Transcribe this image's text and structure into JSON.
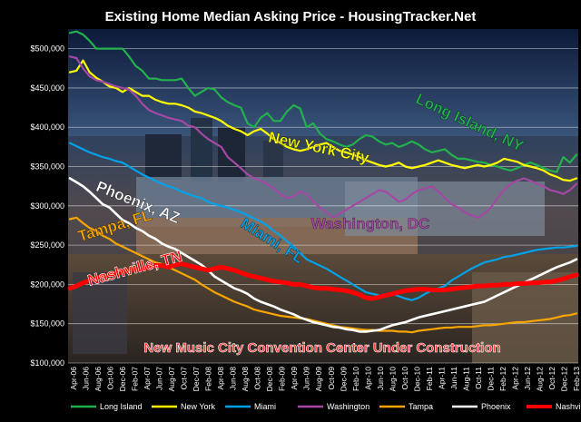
{
  "chart_data": {
    "type": "line",
    "title": "Existing Home Median Asking Price - HousingTracker.Net",
    "subtitle": "",
    "xlabel": "",
    "ylabel": "",
    "ylim": [
      100000,
      525000
    ],
    "yticks": [
      100000,
      150000,
      200000,
      250000,
      300000,
      350000,
      400000,
      450000,
      500000
    ],
    "ytick_labels": [
      "$100,000",
      "$150,000",
      "$200,000",
      "$250,000",
      "$300,000",
      "$350,000",
      "$400,000",
      "$450,000",
      "$500,000"
    ],
    "x_tick_labels": [
      "Apr-06",
      "Jun-06",
      "Aug-06",
      "Oct-06",
      "Dec-06",
      "Feb-07",
      "Apr-07",
      "Jun-07",
      "Aug-07",
      "Oct-07",
      "Dec-07",
      "Feb-08",
      "Apr-08",
      "Jun-08",
      "Aug-08",
      "Oct-08",
      "Dec-08",
      "Feb-09",
      "Apr-09",
      "Jun-09",
      "Aug-09",
      "Oct-09",
      "Dec-09",
      "Feb-10",
      "Apr-10",
      "Jun-10",
      "Aug-10",
      "Oct-10",
      "Dec-10",
      "Feb-11",
      "Apr-11",
      "Jun-11",
      "Aug-11",
      "Oct-11",
      "Dec-11",
      "Feb-12",
      "Apr-12",
      "Jun-12",
      "Aug-12",
      "Oct-12",
      "Dec-12",
      "Feb-13"
    ],
    "grid": true,
    "legend_position": "bottom",
    "annotation": "New Music City Convention Center Under Construction",
    "series": [
      {
        "name": "Long Island",
        "color": "#22b14c",
        "inline_label": "Long Island, NY",
        "stroke": 2.2,
        "values": [
          520000,
          522000,
          518000,
          510000,
          500000,
          500000,
          500000,
          500000,
          500000,
          490000,
          478000,
          472000,
          462000,
          462000,
          460000,
          460000,
          460000,
          462000,
          450000,
          440000,
          445000,
          450000,
          448000,
          438000,
          432000,
          428000,
          425000,
          405000,
          400000,
          412000,
          418000,
          408000,
          408000,
          420000,
          428000,
          424000,
          400000,
          405000,
          392000,
          385000,
          382000,
          378000,
          375000,
          378000,
          385000,
          390000,
          388000,
          382000,
          378000,
          380000,
          375000,
          378000,
          382000,
          378000,
          372000,
          368000,
          370000,
          372000,
          365000,
          360000,
          360000,
          358000,
          356000,
          355000,
          352000,
          350000,
          347000,
          345000,
          348000,
          352000,
          355000,
          352000,
          348000,
          345000,
          343000,
          362000,
          355000,
          365000
        ]
      },
      {
        "name": "New York",
        "color": "#ffff00",
        "inline_label": "New York City",
        "stroke": 2.2,
        "values": [
          470000,
          472000,
          485000,
          470000,
          463000,
          458000,
          452000,
          450000,
          445000,
          450000,
          445000,
          440000,
          440000,
          435000,
          432000,
          430000,
          430000,
          428000,
          425000,
          420000,
          418000,
          415000,
          412000,
          408000,
          402000,
          398000,
          395000,
          390000,
          395000,
          398000,
          392000,
          385000,
          380000,
          375000,
          372000,
          370000,
          372000,
          375000,
          378000,
          380000,
          375000,
          370000,
          368000,
          365000,
          362000,
          358000,
          355000,
          352000,
          350000,
          352000,
          355000,
          350000,
          348000,
          350000,
          352000,
          355000,
          358000,
          355000,
          352000,
          350000,
          348000,
          350000,
          352000,
          350000,
          352000,
          355000,
          360000,
          358000,
          356000,
          352000,
          350000,
          348000,
          345000,
          340000,
          337000,
          333000,
          332000,
          335000
        ]
      },
      {
        "name": "Miami",
        "color": "#00a2e8",
        "inline_label": "Miami, FL",
        "stroke": 2.2,
        "values": [
          380000,
          376000,
          372000,
          368000,
          365000,
          362000,
          360000,
          357000,
          355000,
          350000,
          345000,
          340000,
          336000,
          332000,
          328000,
          325000,
          322000,
          318000,
          315000,
          312000,
          310000,
          305000,
          302000,
          300000,
          298000,
          295000,
          292000,
          288000,
          284000,
          280000,
          275000,
          268000,
          262000,
          255000,
          248000,
          240000,
          232000,
          228000,
          224000,
          220000,
          215000,
          210000,
          205000,
          200000,
          195000,
          190000,
          188000,
          186000,
          185000,
          188000,
          185000,
          182000,
          180000,
          183000,
          188000,
          192000,
          195000,
          198000,
          205000,
          210000,
          215000,
          220000,
          224000,
          228000,
          230000,
          232000,
          235000,
          236000,
          238000,
          240000,
          242000,
          244000,
          245000,
          246000,
          247000,
          247000,
          248000,
          249000
        ]
      },
      {
        "name": "Washington",
        "color": "#a349a4",
        "inline_label": "Washington, DC",
        "stroke": 2.2,
        "values": [
          490000,
          488000,
          475000,
          465000,
          460000,
          458000,
          455000,
          452000,
          450000,
          448000,
          440000,
          430000,
          422000,
          418000,
          415000,
          412000,
          410000,
          408000,
          402000,
          400000,
          392000,
          385000,
          380000,
          375000,
          362000,
          355000,
          348000,
          340000,
          335000,
          332000,
          328000,
          322000,
          315000,
          310000,
          312000,
          318000,
          315000,
          305000,
          298000,
          292000,
          285000,
          290000,
          295000,
          300000,
          305000,
          310000,
          315000,
          320000,
          318000,
          312000,
          305000,
          308000,
          315000,
          320000,
          322000,
          325000,
          318000,
          310000,
          302000,
          298000,
          292000,
          288000,
          285000,
          290000,
          298000,
          310000,
          320000,
          328000,
          332000,
          335000,
          332000,
          328000,
          325000,
          320000,
          318000,
          315000,
          320000,
          328000
        ]
      },
      {
        "name": "Tampa",
        "color": "#f7a500",
        "inline_label": "Tampa, FL",
        "stroke": 2.2,
        "values": [
          283000,
          285000,
          278000,
          272000,
          268000,
          262000,
          258000,
          252000,
          248000,
          244000,
          240000,
          236000,
          232000,
          228000,
          226000,
          222000,
          218000,
          214000,
          210000,
          206000,
          200000,
          195000,
          190000,
          186000,
          182000,
          178000,
          175000,
          172000,
          168000,
          166000,
          164000,
          162000,
          160000,
          159000,
          158000,
          157000,
          156000,
          154000,
          152000,
          150000,
          148000,
          146000,
          145000,
          144000,
          143000,
          142000,
          142000,
          141000,
          141000,
          141000,
          140000,
          140000,
          139000,
          141000,
          142000,
          143000,
          144000,
          145000,
          145000,
          146000,
          146000,
          146000,
          147000,
          148000,
          148000,
          149000,
          150000,
          151000,
          152000,
          152000,
          153000,
          154000,
          155000,
          156000,
          158000,
          160000,
          161000,
          163000
        ]
      },
      {
        "name": "Phoenix",
        "color": "#ffffff",
        "inline_label": "Phoenix, AZ",
        "stroke": 2.6,
        "values": [
          335000,
          330000,
          325000,
          318000,
          310000,
          302000,
          298000,
          290000,
          282000,
          278000,
          272000,
          268000,
          262000,
          258000,
          252000,
          248000,
          245000,
          240000,
          235000,
          230000,
          225000,
          218000,
          210000,
          205000,
          200000,
          195000,
          192000,
          188000,
          182000,
          178000,
          175000,
          172000,
          168000,
          165000,
          162000,
          158000,
          155000,
          152000,
          150000,
          148000,
          146000,
          145000,
          143000,
          142000,
          140000,
          140000,
          141000,
          142000,
          145000,
          148000,
          150000,
          152000,
          155000,
          158000,
          160000,
          162000,
          164000,
          166000,
          168000,
          170000,
          172000,
          174000,
          176000,
          178000,
          182000,
          186000,
          190000,
          194000,
          198000,
          202000,
          206000,
          210000,
          214000,
          218000,
          222000,
          225000,
          228000,
          232000
        ]
      },
      {
        "name": "Nashville",
        "color": "#ff0000",
        "inline_label": "Nashville, TN",
        "stroke": 5,
        "values": [
          195000,
          198000,
          202000,
          205000,
          208000,
          210000,
          212000,
          214000,
          216000,
          218000,
          218000,
          220000,
          222000,
          224000,
          224000,
          222000,
          225000,
          226000,
          224000,
          222000,
          220000,
          218000,
          220000,
          222000,
          220000,
          218000,
          215000,
          212000,
          210000,
          208000,
          206000,
          204000,
          203000,
          202000,
          200000,
          200000,
          198000,
          196000,
          195000,
          195000,
          194000,
          193000,
          192000,
          190000,
          187000,
          183000,
          182000,
          184000,
          186000,
          188000,
          190000,
          192000,
          193000,
          194000,
          194000,
          193000,
          193000,
          193000,
          194000,
          195000,
          196000,
          197000,
          198000,
          198000,
          199000,
          199000,
          200000,
          200000,
          201000,
          201000,
          202000,
          202000,
          203000,
          203000,
          205000,
          207000,
          210000,
          212000
        ]
      }
    ]
  }
}
